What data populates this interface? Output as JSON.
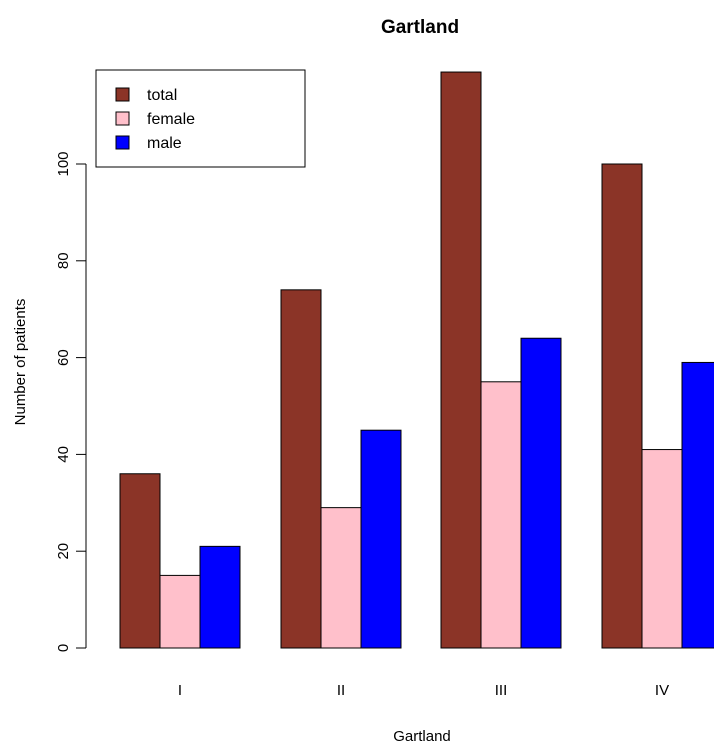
{
  "chart_data": {
    "type": "bar",
    "title": "Gartland",
    "xlabel": "Gartland",
    "ylabel": "Number of patients",
    "categories": [
      "I",
      "II",
      "III",
      "IV"
    ],
    "series": [
      {
        "name": "total",
        "color": "#8B3427",
        "values": [
          36,
          74,
          119,
          100
        ]
      },
      {
        "name": "female",
        "color": "#FFC0CB",
        "values": [
          15,
          29,
          55,
          41
        ]
      },
      {
        "name": "male",
        "color": "#0000FF",
        "values": [
          21,
          45,
          64,
          59
        ]
      }
    ],
    "ylim": [
      0,
      120
    ],
    "yticks": [
      0,
      20,
      40,
      60,
      80,
      100
    ],
    "legend_position": "top-left",
    "grid": false
  }
}
